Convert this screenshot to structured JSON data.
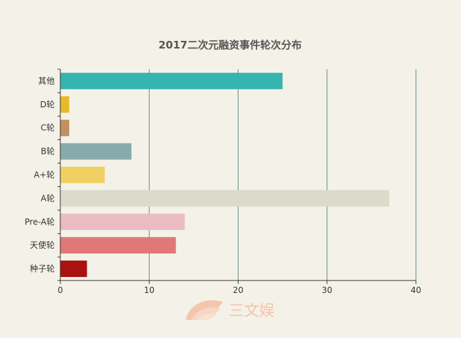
{
  "chart_data": {
    "type": "bar",
    "orientation": "horizontal",
    "title": "2017二次元融资事件轮次分布",
    "categories": [
      "其他",
      "D轮",
      "C轮",
      "B轮",
      "A+轮",
      "A轮",
      "Pre-A轮",
      "天使轮",
      "种子轮"
    ],
    "values": [
      25,
      1,
      1,
      8,
      5,
      37,
      14,
      13,
      3
    ],
    "colors": [
      "#35b5b0",
      "#e8b928",
      "#c09060",
      "#88aaaa",
      "#f0d060",
      "#dcdacb",
      "#ebbcc4",
      "#e07878",
      "#aa1111"
    ],
    "xlim": [
      0,
      40
    ],
    "xticks": [
      0,
      10,
      20,
      30,
      40
    ],
    "grid": true,
    "xlabel": "",
    "ylabel": ""
  },
  "watermark": {
    "text": "三文娱",
    "logo": "sanwenyu-fan-logo"
  }
}
